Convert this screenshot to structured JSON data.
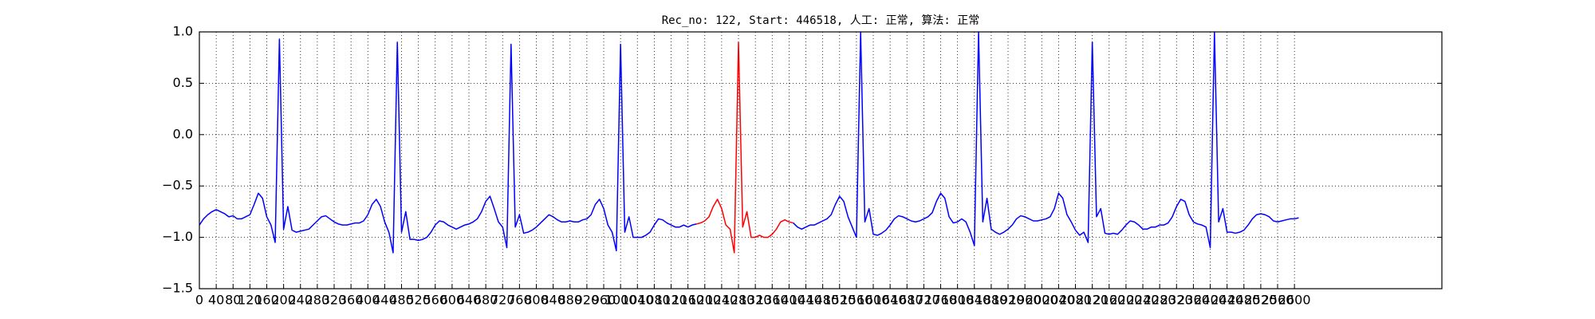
{
  "chart_data": {
    "type": "line",
    "title": "Rec_no: 122, Start: 446518, 人工: 正常, 算法: 正常",
    "xlim": [
      0,
      2950
    ],
    "ylim": [
      -1.5,
      1.0
    ],
    "xticks": [
      0,
      40,
      80,
      120,
      160,
      200,
      240,
      280,
      320,
      360,
      400,
      440,
      480,
      520,
      560,
      600,
      640,
      680,
      720,
      760,
      800,
      840,
      880,
      920,
      960,
      1000,
      1040,
      1080,
      1120,
      1160,
      1200,
      1240,
      1280,
      1320,
      1360,
      1400,
      1440,
      1480,
      1520,
      1560,
      1600,
      1640,
      1680,
      1720,
      1760,
      1800,
      1840,
      1880,
      1920,
      1960,
      2000,
      2040,
      2080,
      2120,
      2160,
      2200,
      2240,
      2280,
      2320,
      2360,
      2400,
      2440,
      2480,
      2520,
      2560,
      2600
    ],
    "yticks": [
      {
        "value": -1.5,
        "label": "−1.5"
      },
      {
        "value": -1.0,
        "label": "−1.0"
      },
      {
        "value": -0.5,
        "label": "−0.5"
      },
      {
        "value": 0,
        "label": "0.0"
      },
      0.5,
      {
        "value": 1.0,
        "label": "1.0"
      }
    ],
    "grid": true,
    "series": [
      {
        "color": "#0000ff",
        "x": [
          0,
          10,
          20,
          30,
          40,
          50,
          60,
          70,
          80,
          90,
          100,
          110,
          120,
          130,
          140,
          150,
          160,
          170,
          180,
          190,
          200,
          210,
          220,
          230,
          240,
          250,
          260,
          270,
          280,
          290,
          300,
          310,
          320,
          330,
          340,
          350,
          360,
          370,
          380,
          390,
          400,
          410,
          420,
          430,
          440,
          450,
          460,
          470,
          480,
          490,
          500,
          510,
          520,
          530,
          540,
          550,
          560,
          570,
          580,
          590,
          600,
          610,
          620,
          630,
          640,
          650,
          660,
          670,
          680,
          690,
          700,
          710,
          720,
          730,
          740,
          750,
          760,
          770,
          780,
          790,
          800,
          810,
          820,
          830,
          840,
          850,
          860,
          870,
          880,
          890,
          900,
          910,
          920,
          930,
          940,
          950,
          960,
          970,
          980,
          990,
          1000,
          1010,
          1020,
          1030,
          1040,
          1050,
          1060,
          1070,
          1080,
          1090,
          1100,
          1110,
          1120,
          1130,
          1140,
          1150,
          1160,
          1170,
          1180
        ],
        "values": [
          -0.88,
          -0.82,
          -0.78,
          -0.75,
          -0.73,
          -0.75,
          -0.77,
          -0.8,
          -0.79,
          -0.82,
          -0.82,
          -0.8,
          -0.78,
          -0.68,
          -0.57,
          -0.62,
          -0.8,
          -0.88,
          -1.05,
          0.93,
          -0.92,
          -0.7,
          -0.93,
          -0.95,
          -0.94,
          -0.93,
          -0.92,
          -0.88,
          -0.84,
          -0.8,
          -0.79,
          -0.82,
          -0.85,
          -0.87,
          -0.88,
          -0.88,
          -0.87,
          -0.86,
          -0.86,
          -0.84,
          -0.78,
          -0.68,
          -0.63,
          -0.7,
          -0.85,
          -0.95,
          -1.15,
          0.9,
          -0.95,
          -0.75,
          -1.02,
          -1.02,
          -1.03,
          -1.02,
          -1.0,
          -0.95,
          -0.88,
          -0.84,
          -0.85,
          -0.88,
          -0.9,
          -0.92,
          -0.9,
          -0.88,
          -0.87,
          -0.85,
          -0.82,
          -0.75,
          -0.65,
          -0.6,
          -0.72,
          -0.85,
          -0.9,
          -1.1,
          0.88,
          -0.9,
          -0.78,
          -0.96,
          -0.95,
          -0.93,
          -0.9,
          -0.86,
          -0.82,
          -0.78,
          -0.8,
          -0.83,
          -0.85,
          -0.85,
          -0.84,
          -0.85,
          -0.85,
          -0.83,
          -0.82,
          -0.78,
          -0.68,
          -0.63,
          -0.72,
          -0.88,
          -0.95,
          -1.13,
          0.88,
          -0.95,
          -0.8,
          -1.0,
          -1.0,
          -1.0,
          -0.98,
          -0.95,
          -0.88,
          -0.82,
          -0.83,
          -0.86,
          -0.88,
          -0.9,
          -0.9,
          -0.88,
          -0.9,
          -0.88,
          -0.87
        ]
      },
      {
        "color": "#ff0000",
        "x": [
          1180,
          1190,
          1200,
          1210,
          1220,
          1230,
          1240,
          1250,
          1260,
          1270,
          1280,
          1290,
          1300,
          1310,
          1320,
          1330,
          1340,
          1350,
          1360,
          1370,
          1380,
          1390,
          1400,
          1410
        ],
        "values": [
          -0.87,
          -0.86,
          -0.84,
          -0.8,
          -0.7,
          -0.63,
          -0.72,
          -0.88,
          -0.92,
          -1.15,
          0.9,
          -0.9,
          -0.75,
          -1.0,
          -1.0,
          -0.98,
          -1.0,
          -1.0,
          -0.97,
          -0.92,
          -0.85,
          -0.83,
          -0.85,
          -0.86
        ]
      },
      {
        "color": "#0000ff",
        "x": [
          1410,
          1420,
          1430,
          1440,
          1450,
          1460,
          1470,
          1480,
          1490,
          1500,
          1510,
          1520,
          1530,
          1540,
          1550,
          1560,
          1570,
          1580,
          1590,
          1600,
          1610,
          1620,
          1630,
          1640,
          1650,
          1660,
          1670,
          1680,
          1690,
          1700,
          1710,
          1720,
          1730,
          1740,
          1750,
          1760,
          1770,
          1780,
          1790,
          1800,
          1810,
          1820,
          1830,
          1840,
          1850,
          1860,
          1870,
          1880,
          1890,
          1900,
          1910,
          1920,
          1930,
          1940,
          1950,
          1960,
          1970,
          1980,
          1990,
          2000,
          2010,
          2020,
          2030,
          2040,
          2050,
          2060,
          2070,
          2080,
          2090,
          2100,
          2110,
          2120,
          2130,
          2140,
          2150,
          2160,
          2170,
          2180,
          2190,
          2200,
          2210,
          2220,
          2230,
          2240,
          2250,
          2260,
          2270,
          2280,
          2290,
          2300,
          2310,
          2320,
          2330,
          2340,
          2350,
          2360,
          2370,
          2380,
          2390,
          2400,
          2410,
          2420,
          2430,
          2440,
          2450,
          2460,
          2470,
          2480,
          2490,
          2500,
          2510,
          2520,
          2530,
          2540,
          2550,
          2560,
          2570,
          2580,
          2590,
          2600,
          2610
        ],
        "values": [
          -0.86,
          -0.9,
          -0.92,
          -0.9,
          -0.88,
          -0.88,
          -0.86,
          -0.84,
          -0.82,
          -0.78,
          -0.68,
          -0.6,
          -0.65,
          -0.8,
          -0.9,
          -1.0,
          1.0,
          -0.85,
          -0.72,
          -0.97,
          -0.98,
          -0.96,
          -0.93,
          -0.88,
          -0.82,
          -0.79,
          -0.8,
          -0.82,
          -0.84,
          -0.85,
          -0.84,
          -0.82,
          -0.8,
          -0.76,
          -0.65,
          -0.57,
          -0.62,
          -0.8,
          -0.86,
          -0.85,
          -0.82,
          -0.85,
          -0.95,
          -1.08,
          1.0,
          -0.85,
          -0.62,
          -0.92,
          -0.95,
          -0.97,
          -0.95,
          -0.92,
          -0.88,
          -0.82,
          -0.79,
          -0.8,
          -0.82,
          -0.84,
          -0.84,
          -0.83,
          -0.82,
          -0.8,
          -0.72,
          -0.57,
          -0.62,
          -0.78,
          -0.85,
          -0.93,
          -0.98,
          -0.95,
          -1.05,
          0.9,
          -0.8,
          -0.72,
          -0.96,
          -0.97,
          -0.96,
          -0.97,
          -0.93,
          -0.88,
          -0.84,
          -0.85,
          -0.88,
          -0.92,
          -0.92,
          -0.9,
          -0.9,
          -0.88,
          -0.88,
          -0.86,
          -0.8,
          -0.7,
          -0.63,
          -0.65,
          -0.78,
          -0.85,
          -0.87,
          -0.88,
          -0.9,
          -1.1,
          1.0,
          -0.85,
          -0.72,
          -0.95,
          -0.95,
          -0.96,
          -0.95,
          -0.93,
          -0.88,
          -0.82,
          -0.78,
          -0.77,
          -0.78,
          -0.8,
          -0.84,
          -0.85,
          -0.84,
          -0.83,
          -0.82,
          -0.82,
          -0.81
        ]
      }
    ]
  }
}
